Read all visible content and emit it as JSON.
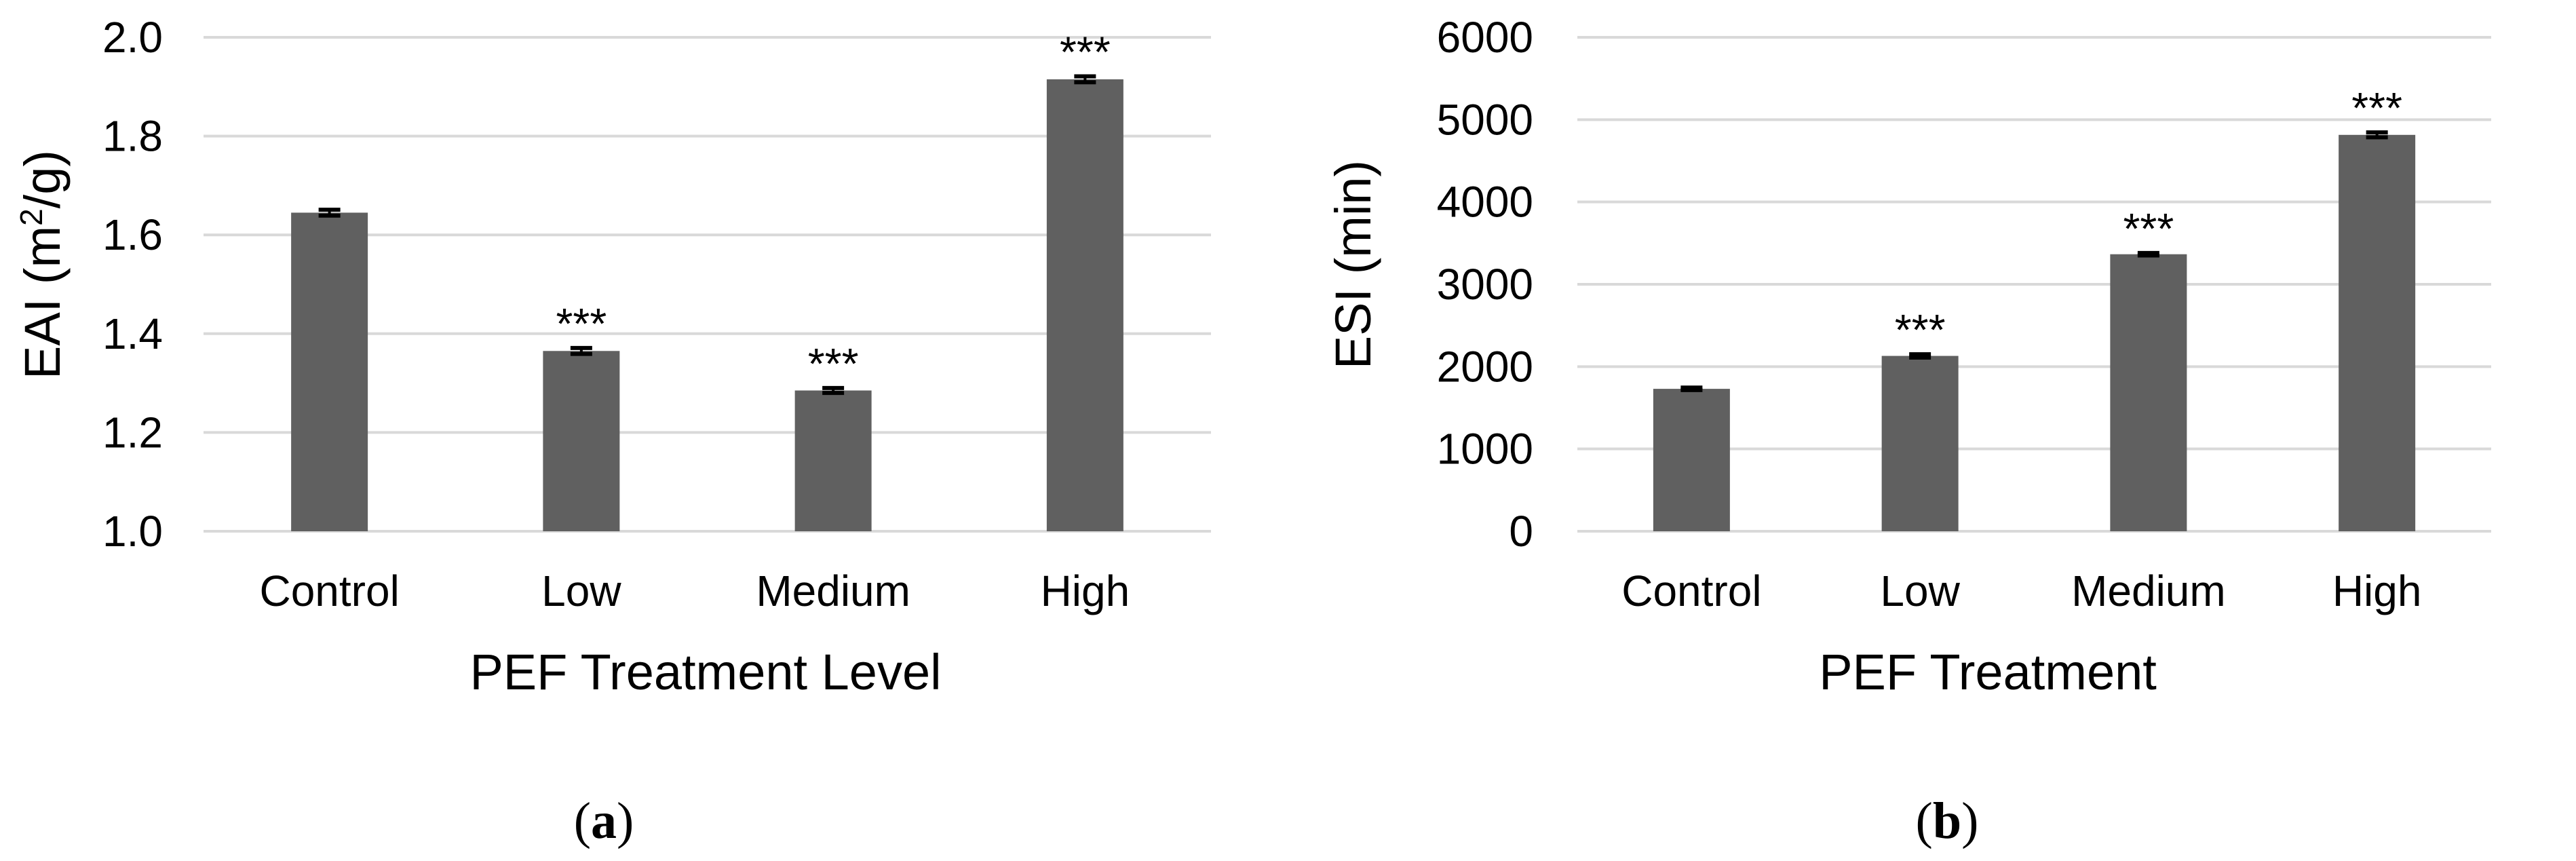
{
  "chart_data": [
    {
      "type": "bar",
      "panel_label": "a",
      "categories": [
        "Control",
        "Low",
        "Medium",
        "High"
      ],
      "values": [
        1.645,
        1.365,
        1.285,
        1.915
      ],
      "errors": [
        0.006,
        0.006,
        0.005,
        0.006
      ],
      "significance": [
        "",
        "***",
        "***",
        "***"
      ],
      "xlabel": "PEF Treatment Level",
      "ylabel_main": "EAI (m",
      "ylabel_sup": "2",
      "ylabel_tail": "/g)",
      "ylim": [
        1.0,
        2.0
      ],
      "yticks": [
        1.0,
        1.2,
        1.4,
        1.6,
        1.8,
        2.0
      ],
      "ytick_labels": [
        "1.0",
        "1.2",
        "1.4",
        "1.6",
        "1.8",
        "2.0"
      ],
      "ytick_decimals": 1,
      "grid": true,
      "bar_color": "#606060",
      "grid_color": "#d9d9d9"
    },
    {
      "type": "bar",
      "panel_label": "b",
      "categories": [
        "Control",
        "Low",
        "Medium",
        "High"
      ],
      "values": [
        1730,
        2130,
        3365,
        4815
      ],
      "errors": [
        15,
        20,
        15,
        30
      ],
      "significance": [
        "",
        "***",
        "***",
        "***"
      ],
      "xlabel": "PEF Treatment",
      "ylabel_main": "ESI (min)",
      "ylabel_sup": "",
      "ylabel_tail": "",
      "ylim": [
        0,
        6000
      ],
      "yticks": [
        0,
        1000,
        2000,
        3000,
        4000,
        5000,
        6000
      ],
      "ytick_labels": [
        "0",
        "1000",
        "2000",
        "3000",
        "4000",
        "5000",
        "6000"
      ],
      "ytick_decimals": 0,
      "grid": true,
      "bar_color": "#606060",
      "grid_color": "#d9d9d9"
    }
  ]
}
